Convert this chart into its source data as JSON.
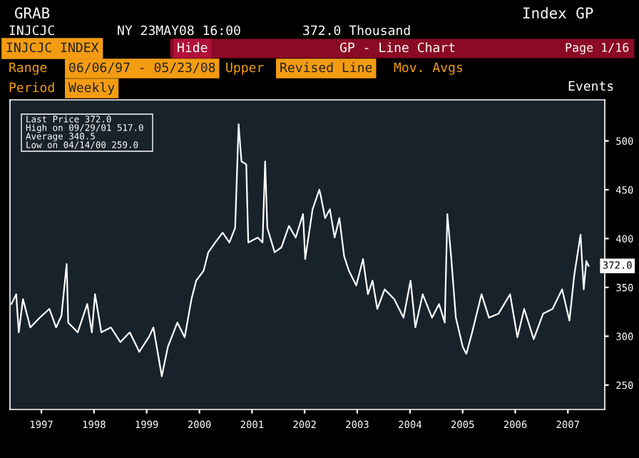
{
  "chart_data": {
    "type": "line",
    "title": "INJCJC INDEX",
    "x": [
      "1997-06-06",
      "1997-07-09",
      "1997-07-27",
      "1997-08-25",
      "1997-10-15",
      "1997-12-20",
      "1998-02-24",
      "1998-04-12",
      "1998-05-19",
      "1998-06-24",
      "1998-07-05",
      "1998-09-09",
      "1998-11-14",
      "1998-12-16",
      "1999-01-07",
      "1999-02-20",
      "1999-04-27",
      "1999-07-02",
      "1999-09-05",
      "1999-11-10",
      "2000-01-15",
      "2000-02-16",
      "2000-04-14",
      "2000-05-26",
      "2000-07-31",
      "2000-09-20",
      "2000-11-06",
      "2000-12-09",
      "2001-01-29",
      "2001-03-03",
      "2001-04-20",
      "2001-06-10",
      "2001-07-27",
      "2001-09-05",
      "2001-09-29",
      "2001-10-19",
      "2001-11-21",
      "2001-12-05",
      "2002-02-09",
      "2002-03-14",
      "2002-04-01",
      "2002-04-16",
      "2002-06-06",
      "2002-07-23",
      "2002-09-13",
      "2002-10-30",
      "2002-12-20",
      "2003-01-04",
      "2003-02-24",
      "2003-04-12",
      "2003-04-20",
      "2003-05-22",
      "2003-06-24",
      "2003-07-27",
      "2003-08-29",
      "2003-10-01",
      "2003-11-03",
      "2003-12-24",
      "2004-02-09",
      "2004-03-14",
      "2004-04-15",
      "2004-05-18",
      "2004-07-08",
      "2004-09-12",
      "2004-11-16",
      "2005-01-04",
      "2005-02-06",
      "2005-03-29",
      "2005-06-02",
      "2005-07-20",
      "2005-08-29",
      "2005-09-16",
      "2005-10-12",
      "2005-11-14",
      "2006-01-01",
      "2006-01-26",
      "2006-03-07",
      "2006-05-11",
      "2006-07-02",
      "2006-09-05",
      "2006-11-25",
      "2007-01-15",
      "2007-03-03",
      "2007-05-08",
      "2007-07-12",
      "2007-09-16",
      "2007-11-21",
      "2008-01-11",
      "2008-02-13",
      "2008-03-28",
      "2008-04-19",
      "2008-05-07",
      "2008-05-23"
    ],
    "series": [
      {
        "color": "#ffffff",
        "values": [
          333,
          343,
          304,
          338,
          309,
          319,
          328,
          309,
          321,
          374,
          314,
          304,
          333,
          304,
          343,
          304,
          309,
          294,
          304,
          284,
          299,
          309,
          259,
          289,
          314,
          299,
          338,
          357,
          367,
          386,
          396,
          406,
          396,
          411,
          517,
          479,
          476,
          396,
          401,
          396,
          479,
          411,
          386,
          391,
          413,
          401,
          425,
          379,
          430,
          450,
          445,
          421,
          430,
          401,
          421,
          382,
          367,
          352,
          379,
          343,
          357,
          328,
          348,
          338,
          319,
          357,
          309,
          343,
          319,
          333,
          314,
          425,
          382,
          319,
          289,
          282,
          304,
          343,
          319,
          323,
          343,
          299,
          328,
          297,
          323,
          328,
          348,
          316,
          362,
          404,
          348,
          377,
          372
        ]
      }
    ],
    "xlim": [
      "1997-05-27",
      "2008-09-12"
    ],
    "ylim": [
      225,
      542
    ],
    "xticks": [
      {
        "value": "1997-12-31",
        "label": "1997"
      },
      {
        "value": "1998-12-31",
        "label": "1998"
      },
      {
        "value": "1999-12-31",
        "label": "1999"
      },
      {
        "value": "2000-12-31",
        "label": "2000"
      },
      {
        "value": "2001-12-31",
        "label": "2001"
      },
      {
        "value": "2002-12-31",
        "label": "2002"
      },
      {
        "value": "2003-12-31",
        "label": "2003"
      },
      {
        "value": "2004-12-31",
        "label": "2004"
      },
      {
        "value": "2005-12-31",
        "label": "2005"
      },
      {
        "value": "2006-12-31",
        "label": "2006"
      },
      {
        "value": "2007-12-31",
        "label": "2007"
      }
    ],
    "yticks": [
      250,
      300,
      350,
      400,
      450,
      500
    ],
    "grid": false,
    "legend": false,
    "annotations": [
      "GRAB",
      "INJCJC",
      "NY 23MAY08 16:00",
      "372.0 Thousand",
      "Index GP",
      "Hide",
      "GP - Line Chart",
      "Page 1/16",
      "Range",
      "06/06/97 - 05/23/08",
      "Upper",
      "Revised Line",
      "Mov. Avgs",
      "Period",
      "Weekly",
      "Events",
      "Last Price 372.0",
      "High on 09/29/01 517.0",
      "Average 340.5",
      "Low on 04/14/00 259.0",
      {
        "text": "372.0",
        "x": "2008-05-23",
        "y": 372
      }
    ]
  }
}
